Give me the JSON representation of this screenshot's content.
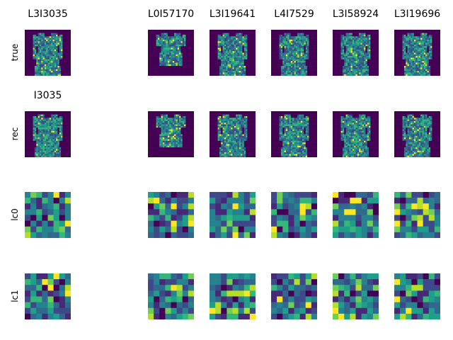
{
  "columns": [
    {
      "title": "L3I3035",
      "rec_title": "I3035",
      "framed": true
    },
    {
      "title": "L0I57170",
      "rec_title": "",
      "framed": false
    },
    {
      "title": "L3I19641",
      "rec_title": "",
      "framed": false
    },
    {
      "title": "L4I7529",
      "rec_title": "",
      "framed": false
    },
    {
      "title": "L3I58924",
      "rec_title": "",
      "framed": false
    },
    {
      "title": "L3I19696",
      "rec_title": "",
      "framed": false
    }
  ],
  "rows": [
    {
      "label": "true",
      "kind": "garment"
    },
    {
      "label": "rec",
      "kind": "garment"
    },
    {
      "label": "lc0",
      "kind": "grid",
      "size": 8
    },
    {
      "label": "lc1",
      "kind": "grid",
      "size": 8
    }
  ],
  "colors": {
    "background": "#440154",
    "colormap": [
      "#440154",
      "#482878",
      "#3e4989",
      "#31688e",
      "#26828e",
      "#1f9e89",
      "#35b779",
      "#6ece58",
      "#b5de2b",
      "#fde725"
    ]
  }
}
